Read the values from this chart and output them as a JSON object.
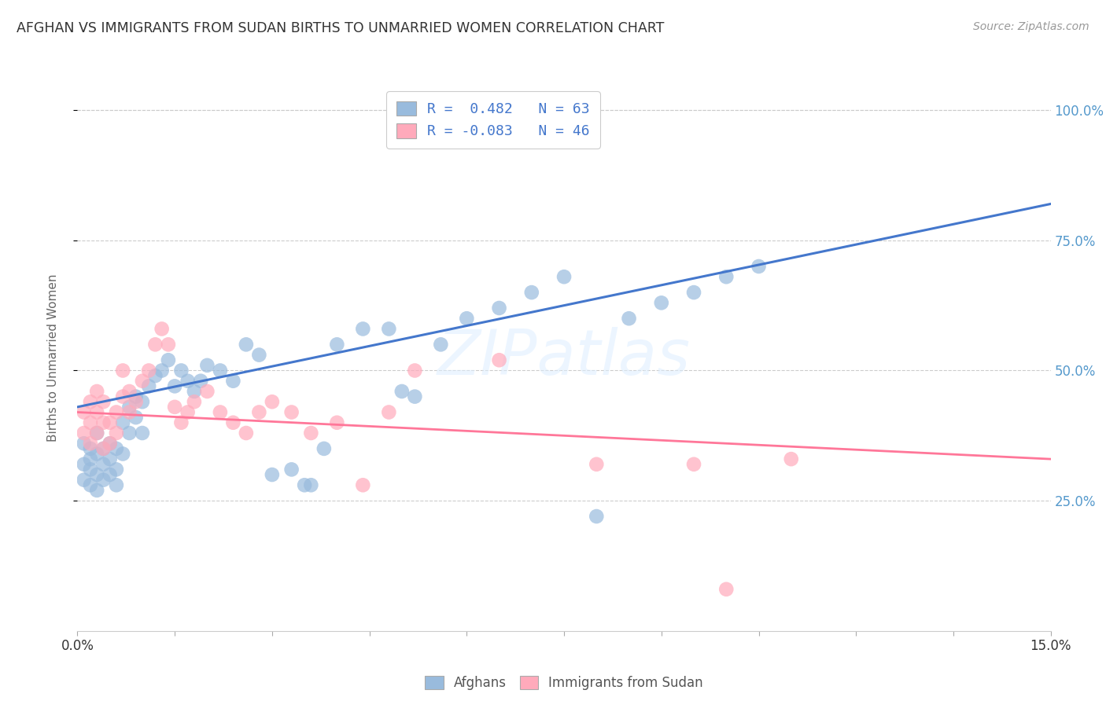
{
  "title": "AFGHAN VS IMMIGRANTS FROM SUDAN BIRTHS TO UNMARRIED WOMEN CORRELATION CHART",
  "source": "Source: ZipAtlas.com",
  "ylabel": "Births to Unmarried Women",
  "legend_labels": [
    "Afghans",
    "Immigrants from Sudan"
  ],
  "blue_R": "0.482",
  "blue_N": "63",
  "pink_R": "-0.083",
  "pink_N": "46",
  "blue_color": "#99BBDD",
  "pink_color": "#FFAABB",
  "blue_line_color": "#4477CC",
  "pink_line_color": "#FF7799",
  "watermark_text": "ZIPatlas",
  "bg_color": "#FFFFFF",
  "grid_color": "#CCCCCC",
  "title_color": "#333333",
  "right_axis_color": "#5599CC",
  "blue_scatter_x": [
    0.001,
    0.001,
    0.001,
    0.002,
    0.002,
    0.002,
    0.002,
    0.003,
    0.003,
    0.003,
    0.003,
    0.004,
    0.004,
    0.004,
    0.005,
    0.005,
    0.005,
    0.006,
    0.006,
    0.006,
    0.007,
    0.007,
    0.008,
    0.008,
    0.009,
    0.009,
    0.01,
    0.01,
    0.011,
    0.012,
    0.013,
    0.014,
    0.015,
    0.016,
    0.017,
    0.018,
    0.019,
    0.02,
    0.022,
    0.024,
    0.026,
    0.028,
    0.03,
    0.033,
    0.036,
    0.04,
    0.044,
    0.048,
    0.052,
    0.056,
    0.06,
    0.065,
    0.07,
    0.075,
    0.08,
    0.085,
    0.09,
    0.095,
    0.1,
    0.105,
    0.035,
    0.038,
    0.05
  ],
  "blue_scatter_y": [
    0.32,
    0.36,
    0.29,
    0.31,
    0.35,
    0.28,
    0.33,
    0.34,
    0.3,
    0.27,
    0.38,
    0.32,
    0.29,
    0.35,
    0.33,
    0.3,
    0.36,
    0.31,
    0.35,
    0.28,
    0.4,
    0.34,
    0.43,
    0.38,
    0.45,
    0.41,
    0.44,
    0.38,
    0.47,
    0.49,
    0.5,
    0.52,
    0.47,
    0.5,
    0.48,
    0.46,
    0.48,
    0.51,
    0.5,
    0.48,
    0.55,
    0.53,
    0.3,
    0.31,
    0.28,
    0.55,
    0.58,
    0.58,
    0.45,
    0.55,
    0.6,
    0.62,
    0.65,
    0.68,
    0.22,
    0.6,
    0.63,
    0.65,
    0.68,
    0.7,
    0.28,
    0.35,
    0.46
  ],
  "pink_scatter_x": [
    0.001,
    0.001,
    0.002,
    0.002,
    0.002,
    0.003,
    0.003,
    0.003,
    0.004,
    0.004,
    0.004,
    0.005,
    0.005,
    0.006,
    0.006,
    0.007,
    0.007,
    0.008,
    0.008,
    0.009,
    0.01,
    0.011,
    0.012,
    0.013,
    0.014,
    0.015,
    0.016,
    0.017,
    0.018,
    0.02,
    0.022,
    0.024,
    0.026,
    0.028,
    0.03,
    0.033,
    0.036,
    0.04,
    0.044,
    0.048,
    0.052,
    0.065,
    0.08,
    0.095,
    0.1,
    0.11
  ],
  "pink_scatter_y": [
    0.38,
    0.42,
    0.36,
    0.4,
    0.44,
    0.38,
    0.42,
    0.46,
    0.4,
    0.44,
    0.35,
    0.4,
    0.36,
    0.42,
    0.38,
    0.45,
    0.5,
    0.42,
    0.46,
    0.44,
    0.48,
    0.5,
    0.55,
    0.58,
    0.55,
    0.43,
    0.4,
    0.42,
    0.44,
    0.46,
    0.42,
    0.4,
    0.38,
    0.42,
    0.44,
    0.42,
    0.38,
    0.4,
    0.28,
    0.42,
    0.5,
    0.52,
    0.32,
    0.32,
    0.08,
    0.33
  ],
  "blue_line_x": [
    0.0,
    0.15
  ],
  "blue_line_y": [
    0.43,
    0.82
  ],
  "pink_line_x": [
    0.0,
    0.15
  ],
  "pink_line_y": [
    0.42,
    0.33
  ],
  "xlim": [
    0.0,
    0.15
  ],
  "ylim": [
    0.0,
    1.05
  ],
  "y_ticks": [
    0.25,
    0.5,
    0.75,
    1.0
  ],
  "y_tick_labels": [
    "25.0%",
    "50.0%",
    "75.0%",
    "100.0%"
  ]
}
